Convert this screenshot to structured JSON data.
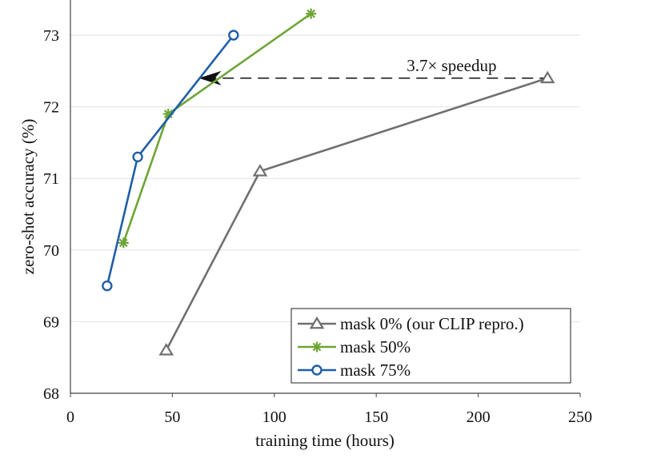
{
  "chart_data": {
    "type": "line",
    "title": "",
    "xlabel": "training time (hours)",
    "ylabel": "zero-shot accuracy (%)",
    "xlim": [
      0,
      250
    ],
    "ylim": [
      68,
      73.5
    ],
    "xticks": [
      0,
      50,
      100,
      150,
      200,
      250
    ],
    "yticks": [
      68,
      69,
      70,
      71,
      72,
      73
    ],
    "grid": "horizontal",
    "legend_position": "bottom-right",
    "series": [
      {
        "name": "mask 0% (our CLIP repro.)",
        "color": "#707070",
        "marker": "triangle",
        "x": [
          47,
          93,
          234
        ],
        "y": [
          68.6,
          71.1,
          72.4
        ]
      },
      {
        "name": "mask 50%",
        "color": "#6ea535",
        "marker": "asterisk",
        "x": [
          26,
          48,
          118
        ],
        "y": [
          70.1,
          71.9,
          73.3
        ]
      },
      {
        "name": "mask 75%",
        "color": "#1f5fa8",
        "marker": "circle",
        "x": [
          18,
          33,
          80
        ],
        "y": [
          69.5,
          71.3,
          73.0
        ]
      }
    ],
    "annotation": {
      "text": "3.7× speedup",
      "from_x": 234,
      "to_x": 63,
      "y": 72.4
    }
  }
}
